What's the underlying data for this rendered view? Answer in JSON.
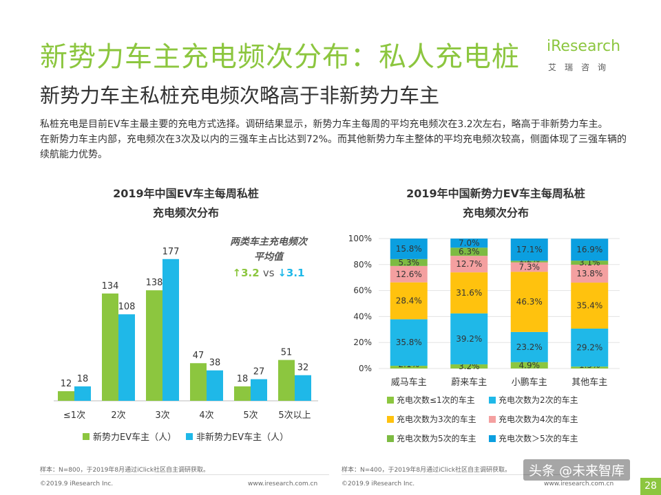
{
  "header": {
    "title": "新势力车主充电频次分布：私人充电桩",
    "subtitle": "新势力车主私桩充电频次略高于非新势力车主",
    "logo_main": "iResearch",
    "logo_sub": "艾瑞咨询",
    "brand_color": "#8cc63f"
  },
  "intro": {
    "p1": "私桩充电是目前EV车主最主要的充电方式选择。调研结果显示，新势力车主每周的平均充电频次在3.2次左右，略高于非新势力车主。",
    "p2": "在新势力车主内部，充电频次在3次及以内的三强车主占比达到72%。而其他新势力车主整体的平均充电频次较高，侧面体现了三强车辆的续航能力优势。"
  },
  "chart_data": [
    {
      "type": "bar",
      "title": "2019年中国EV车主每周私桩充电频次分布",
      "title_line1": "2019年中国EV车主每周私桩",
      "title_line2": "充电频次分布",
      "categories": [
        "≤1次",
        "2次",
        "3次",
        "4次",
        "5次",
        "5次以上"
      ],
      "series": [
        {
          "name": "新势力EV车主（人）",
          "values": [
            12,
            134,
            138,
            47,
            18,
            51
          ],
          "color": "#8cc63f"
        },
        {
          "name": "非新势力EV车主（人）",
          "values": [
            18,
            108,
            177,
            38,
            27,
            32
          ],
          "color": "#1fb8e8"
        }
      ],
      "annotation": {
        "line1": "两类车主充电频次",
        "line2": "平均值",
        "new_value": "↑3.2",
        "vs": "vs",
        "other_value": "↓3.1"
      },
      "ylim": [
        0,
        200
      ],
      "legend_position": "bottom"
    },
    {
      "type": "bar",
      "stacked": true,
      "title": "2019年中国新势力EV车主每周私桩充电频次分布",
      "title_line1": "2019年中国新势力EV车主每周私桩",
      "title_line2": "充电频次分布",
      "categories": [
        "威马车主",
        "蔚来车主",
        "小鹏车主",
        "其他车主"
      ],
      "y_ticks": [
        "0%",
        "20%",
        "40%",
        "60%",
        "80%",
        "100%"
      ],
      "ylim": [
        0,
        100
      ],
      "grid": true,
      "series": [
        {
          "name": "充电次数≤1次的车主",
          "values": [
            2.1,
            3.2,
            4.9,
            1.5
          ],
          "labels": [
            "2.1%",
            "3.2%",
            "4.9%",
            "1.5%"
          ],
          "color": "#8cc63f"
        },
        {
          "name": "充电次数为2次的车主",
          "values": [
            35.8,
            39.2,
            23.2,
            29.2
          ],
          "labels": [
            "35.8%",
            "39.2%",
            "23.2%",
            "29.2%"
          ],
          "color": "#1fb8e8"
        },
        {
          "name": "充电次数为3次的车主",
          "values": [
            28.4,
            31.6,
            46.3,
            35.4
          ],
          "labels": [
            "28.4%",
            "31.6%",
            "46.3%",
            "35.4%"
          ],
          "color": "#ffc20e"
        },
        {
          "name": "充电次数为4次的车主",
          "values": [
            12.6,
            12.7,
            7.3,
            13.8
          ],
          "labels": [
            "12.6%",
            "12.7%",
            "7.3%",
            "13.8%"
          ],
          "color": "#f4a0a0"
        },
        {
          "name": "充电次数为5次的车主",
          "values": [
            5.3,
            6.3,
            1.2,
            3.1
          ],
          "labels": [
            "5.3%",
            "6.3%",
            "1.2%",
            "3.1%"
          ],
          "color": "#7dbb42"
        },
        {
          "name": "充电次数＞5次的车主",
          "values": [
            15.8,
            7.0,
            17.1,
            16.9
          ],
          "labels": [
            "15.8%",
            "7.0%",
            "17.1%",
            "16.9%"
          ],
          "color": "#0b9fe0"
        }
      ],
      "legend_position": "bottom"
    }
  ],
  "footer": {
    "left_note": "样本：N=800，于2019年8月通过iClick社区自主调研获取。",
    "right_note": "样本：N=400，于2019年8月通过iClick社区自主调研获取。",
    "left_copyright": "©2019.9  iResearch Inc.",
    "left_url": "www.iresearch.com.cn",
    "right_copyright": "©2019.9  iResearch Inc.",
    "right_url": "www.iresearch.com.cn",
    "page_number": "28",
    "watermark": "头条 @未来智库"
  }
}
